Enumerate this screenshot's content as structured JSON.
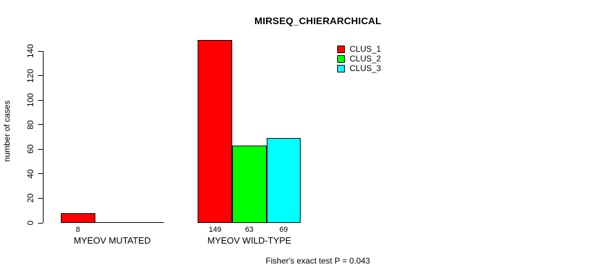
{
  "chart_data": {
    "type": "bar",
    "title": "MIRSEQ_CHIERARCHICAL",
    "xlabel": "",
    "ylabel": "number of cases",
    "ylim": [
      0,
      140
    ],
    "yticks": [
      0,
      20,
      40,
      60,
      80,
      100,
      120,
      140
    ],
    "grid": false,
    "categories": [
      "MYEOV MUTATED",
      "MYEOV WILD-TYPE"
    ],
    "series": [
      {
        "name": "CLUS_1",
        "color": "#ff0000",
        "values": [
          8,
          149
        ]
      },
      {
        "name": "CLUS_2",
        "color": "#00ff00",
        "values": [
          0,
          63
        ]
      },
      {
        "name": "CLUS_3",
        "color": "#00ffff",
        "values": [
          0,
          69
        ]
      }
    ],
    "bar_labels": [
      [
        "8",
        null,
        null
      ],
      [
        "149",
        "63",
        "69"
      ]
    ],
    "legend": {
      "position": "top-right",
      "entries": [
        "CLUS_1",
        "CLUS_2",
        "CLUS_3"
      ]
    },
    "annotation": "Fisher's exact test P = 0.043"
  },
  "colors": {
    "axis": "#000000",
    "background": "#ffffff",
    "text": "#000000"
  }
}
